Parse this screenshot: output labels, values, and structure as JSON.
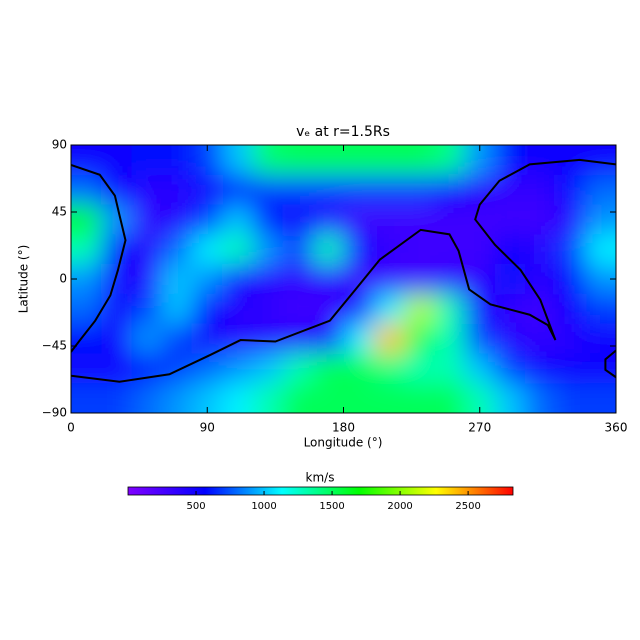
{
  "chart_data": {
    "type": "heatmap",
    "title": "vₑ at r=1.5Rs",
    "xlabel": "Longitude (°)",
    "ylabel": "Latitude (°)",
    "xlim": [
      0,
      360
    ],
    "ylim": [
      -90,
      90
    ],
    "xticks": [
      0,
      90,
      180,
      270,
      360
    ],
    "yticks": [
      90,
      45,
      0,
      {
        "value": -45,
        "label": "−45"
      },
      {
        "value": -90,
        "label": "−90"
      }
    ],
    "x": [
      10,
      30,
      50,
      70,
      90,
      110,
      130,
      150,
      170,
      190,
      210,
      230,
      250,
      270,
      290,
      310,
      330,
      350
    ],
    "y": [
      80,
      60,
      40,
      20,
      0,
      -20,
      -40,
      -60,
      -80
    ],
    "z": [
      [
        500,
        500,
        600,
        600,
        700,
        1000,
        1450,
        1500,
        1500,
        1500,
        1500,
        1500,
        1400,
        900,
        600,
        500,
        500,
        500
      ],
      [
        800,
        500,
        400,
        400,
        500,
        600,
        700,
        700,
        700,
        700,
        700,
        700,
        600,
        400,
        350,
        350,
        600,
        800
      ],
      [
        1700,
        900,
        350,
        400,
        700,
        1000,
        600,
        500,
        400,
        300,
        300,
        300,
        300,
        300,
        300,
        300,
        400,
        900
      ],
      [
        1300,
        600,
        400,
        800,
        1100,
        1300,
        900,
        700,
        1300,
        600,
        350,
        300,
        300,
        300,
        500,
        400,
        700,
        1100
      ],
      [
        900,
        500,
        400,
        1000,
        900,
        500,
        400,
        350,
        400,
        300,
        300,
        300,
        350,
        350,
        600,
        400,
        600,
        900
      ],
      [
        800,
        500,
        700,
        1000,
        600,
        400,
        350,
        300,
        300,
        600,
        1100,
        2100,
        1300,
        500,
        350,
        300,
        500,
        700
      ],
      [
        600,
        500,
        900,
        700,
        500,
        400,
        400,
        400,
        500,
        1100,
        2400,
        1500,
        1300,
        700,
        400,
        350,
        400,
        500
      ],
      [
        500,
        500,
        600,
        700,
        800,
        900,
        1000,
        1300,
        1500,
        1500,
        1400,
        1300,
        1300,
        1000,
        700,
        500,
        500,
        500
      ],
      [
        700,
        700,
        800,
        900,
        1000,
        1100,
        1300,
        1500,
        1500,
        1500,
        1500,
        1500,
        1500,
        1300,
        1000,
        800,
        700,
        700
      ]
    ],
    "colormap": [
      "#8000ff",
      "#0000ff",
      "#00ffff",
      "#00ff00",
      "#ffff00",
      "#ff0000"
    ],
    "clim": [
      0,
      2830
    ],
    "colorbar_label": "km/s",
    "colorbar_ticks": [
      500,
      1000,
      1500,
      2000,
      2500
    ],
    "contour": {
      "color": "#000000",
      "x": [
        0,
        19,
        29,
        32,
        36,
        31,
        26,
        16,
        6,
        0,
        null,
        0,
        32,
        65,
        92,
        112,
        135,
        171,
        188,
        204,
        231,
        250,
        256,
        263,
        277,
        303,
        315,
        320,
        310,
        297,
        280,
        267,
        270,
        283,
        303,
        336,
        360,
        null,
        360,
        353,
        353,
        360
      ],
      "y": [
        76.6,
        70,
        56,
        43,
        26,
        6,
        -11,
        -28,
        -41,
        -49,
        null,
        -65,
        -69,
        -64,
        -51,
        -41,
        -42,
        -28,
        -7,
        13,
        33,
        30,
        19,
        -7,
        -17,
        -24,
        -31,
        -41,
        -14,
        6,
        23,
        40,
        50,
        66,
        77,
        80,
        77,
        null,
        -48,
        -54,
        -61,
        -66
      ]
    }
  }
}
